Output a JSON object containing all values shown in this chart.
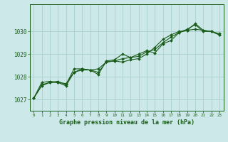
{
  "title": "Graphe pression niveau de la mer (hPa)",
  "background_color": "#cce8e8",
  "grid_color": "#aacfcf",
  "line_color": "#1a5c1a",
  "marker_color": "#1a5c1a",
  "xlim": [
    -0.5,
    23.5
  ],
  "ylim": [
    1026.5,
    1031.2
  ],
  "yticks": [
    1027,
    1028,
    1029,
    1030
  ],
  "xticks": [
    0,
    1,
    2,
    3,
    4,
    5,
    6,
    7,
    8,
    9,
    10,
    11,
    12,
    13,
    14,
    15,
    16,
    17,
    18,
    19,
    20,
    21,
    22,
    23
  ],
  "series": [
    [
      1027.05,
      1027.75,
      1027.8,
      1027.75,
      1027.7,
      1028.2,
      1028.35,
      1028.3,
      1028.35,
      1028.65,
      1028.7,
      1028.65,
      1028.75,
      1028.8,
      1029.0,
      1029.3,
      1029.65,
      1029.85,
      1030.0,
      1030.05,
      1030.35,
      1030.05,
      1030.0,
      1029.85
    ],
    [
      1027.05,
      1027.65,
      1027.75,
      1027.8,
      1027.65,
      1028.35,
      1028.35,
      1028.3,
      1028.1,
      1028.7,
      1028.75,
      1029.0,
      1028.85,
      1029.0,
      1029.15,
      1029.05,
      1029.45,
      1029.6,
      1029.95,
      1030.05,
      1030.1,
      1030.05,
      1030.0,
      1029.9
    ],
    [
      1027.05,
      1027.6,
      1027.75,
      1027.75,
      1027.6,
      1028.2,
      1028.3,
      1028.3,
      1028.2,
      1028.65,
      1028.7,
      1028.8,
      1028.85,
      1028.9,
      1029.1,
      1029.2,
      1029.5,
      1029.75,
      1029.95,
      1030.1,
      1030.3,
      1030.0,
      1030.0,
      1029.85
    ]
  ]
}
